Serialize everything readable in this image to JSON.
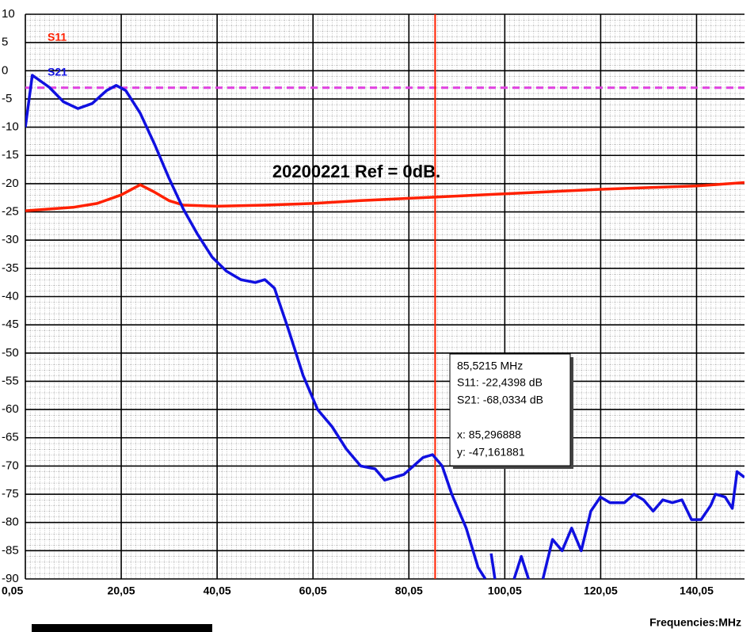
{
  "chart_data": {
    "type": "line",
    "title": "20200221  Ref = 0dB.",
    "x_label": "Frequencies:MHz",
    "xlim": [
      0.05,
      150.05
    ],
    "ylim": [
      -90,
      10
    ],
    "xticks": [
      {
        "value": 0.05,
        "label": "0,05"
      },
      {
        "value": 20.05,
        "label": "20,05"
      },
      {
        "value": 40.05,
        "label": "40,05"
      },
      {
        "value": 60.05,
        "label": "60,05"
      },
      {
        "value": 80.05,
        "label": "80,05"
      },
      {
        "value": 100.05,
        "label": "100,05"
      },
      {
        "value": 120.05,
        "label": "120,05"
      },
      {
        "value": 140.05,
        "label": "140,05"
      }
    ],
    "yticks": [
      10,
      5,
      0,
      -5,
      -10,
      -15,
      -20,
      -25,
      -30,
      -35,
      -40,
      -45,
      -50,
      -55,
      -60,
      -65,
      -70,
      -75,
      -80,
      -85,
      -90
    ],
    "grid": true,
    "ref_line": {
      "value": -3,
      "color": "#e040e0"
    },
    "marker": {
      "x": 85.5215,
      "color": "#ff2000"
    },
    "readout": [
      "85,5215 MHz",
      "S11:  -22,4398 dB",
      "S21:  -68,0334 dB",
      "x: 85,296888",
      "y: -47,161881"
    ],
    "series": [
      {
        "name": "S11",
        "color": "#ff2000",
        "x": [
          0.05,
          10,
          15,
          20,
          24,
          27,
          30,
          33,
          40,
          50,
          60,
          70,
          80,
          85,
          100,
          120,
          140,
          150.05
        ],
        "values": [
          -24.8,
          -24.2,
          -23.5,
          -22,
          -20.2,
          -21.5,
          -23,
          -23.8,
          -24,
          -23.8,
          -23.5,
          -23,
          -22.6,
          -22.4,
          -21.8,
          -21,
          -20.4,
          -19.8
        ]
      },
      {
        "name": "S21",
        "color": "#1010e0",
        "x": [
          0.05,
          1.5,
          5,
          8,
          11,
          14,
          17,
          19,
          21,
          24,
          27,
          30,
          33,
          36,
          39,
          42,
          45,
          48,
          50,
          52,
          55,
          58,
          61,
          64,
          67,
          70,
          73,
          75,
          77,
          79,
          81,
          83,
          85,
          87,
          89,
          92,
          94.5,
          96,
          96.6,
          97.2,
          98,
          100,
          102,
          103.5,
          105,
          106.5,
          108,
          110,
          112,
          114,
          116,
          118,
          120,
          122,
          125,
          127,
          129,
          131,
          133,
          135,
          137,
          139,
          141,
          143,
          144,
          146,
          147.5,
          148.5,
          150.05
        ],
        "values": [
          -10,
          -0.8,
          -2.9,
          -5.5,
          -6.7,
          -5.8,
          -3.5,
          -2.6,
          -3.5,
          -7.5,
          -13,
          -19,
          -24.5,
          -29,
          -33,
          -35.5,
          -37,
          -37.5,
          -37,
          -38.5,
          -46,
          -54,
          -60,
          -63,
          -67,
          -70,
          -70.5,
          -72.5,
          -72,
          -71.5,
          -70,
          -68.5,
          -68,
          -70,
          -75,
          -81,
          -88,
          -90,
          null,
          -85.5,
          -90,
          null,
          -90,
          -86,
          -90,
          null,
          -90,
          -83,
          -85,
          -81,
          -85,
          -78,
          -75.5,
          -76.5,
          -76.5,
          -75,
          -76,
          -78,
          -76,
          -76.5,
          -76,
          -79.5,
          -79.5,
          -77,
          -75,
          -75.5,
          -77.5,
          -71,
          -72
        ]
      }
    ]
  }
}
